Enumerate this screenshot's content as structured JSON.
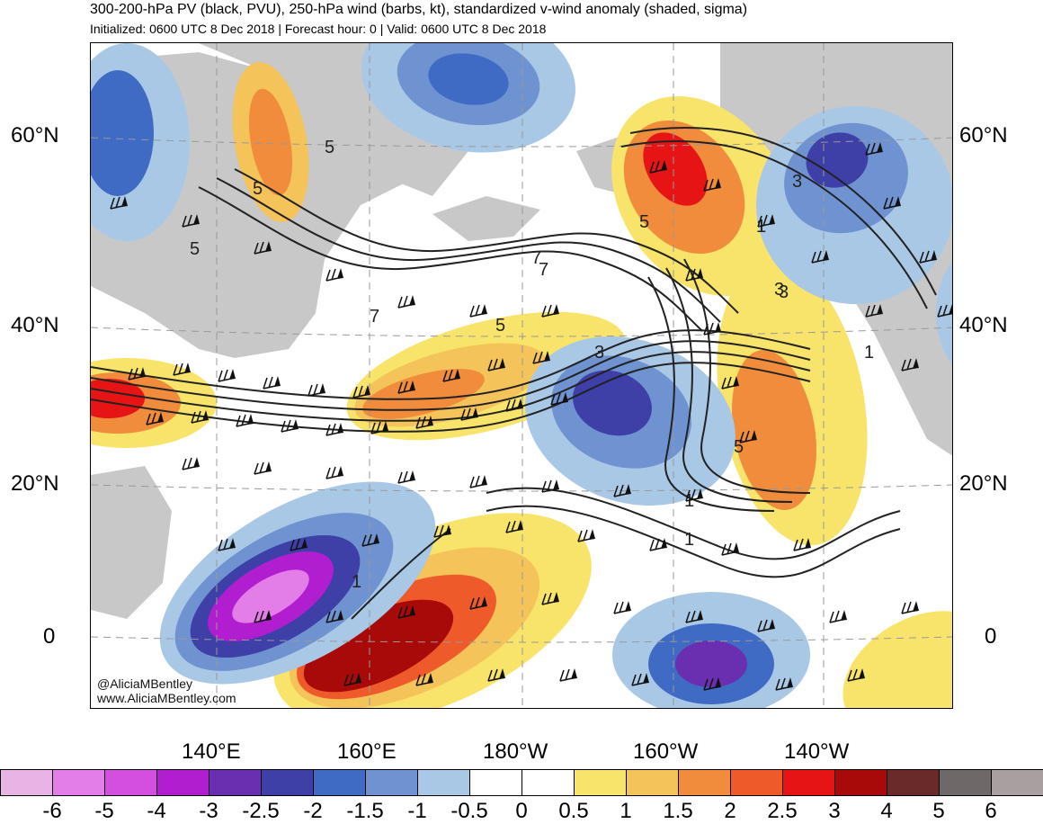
{
  "header": {
    "title": "300-200-hPa PV (black, PVU), 250-hPa wind (barbs, kt), standardized v-wind anomaly (shaded, sigma)",
    "subtitle": "Initialized: 0600 UTC 8 Dec 2018 | Forecast hour: 0 | Valid: 0600 UTC 8 Dec 2018"
  },
  "map": {
    "lat_labels": [
      "60°N",
      "40°N",
      "20°N",
      "0"
    ],
    "lon_labels": [
      "140°E",
      "160°E",
      "180°W",
      "160°W",
      "140°W"
    ],
    "contour_labels": [
      "5",
      "5",
      "5",
      "7",
      "7",
      "7",
      "5",
      "5",
      "3",
      "3",
      "5",
      "3",
      "1",
      "1",
      "1",
      "1",
      "1",
      "1",
      "3"
    ],
    "colors": {
      "land": "#c8c8c8",
      "contour": "#222222"
    }
  },
  "credit": {
    "line1": "@AliciaMBentley",
    "line2": "www.AliciaMBentley.com"
  },
  "colorbar": {
    "ticks": [
      "-6",
      "-5",
      "-4",
      "-3",
      "-2.5",
      "-2",
      "-1.5",
      "-1",
      "-0.5",
      "0",
      "0.5",
      "1",
      "1.5",
      "2",
      "2.5",
      "3",
      "4",
      "5",
      "6"
    ],
    "colors": [
      "#e8b4e6",
      "#e37de8",
      "#d44fe0",
      "#b01ed0",
      "#6a2fb0",
      "#3f3fa8",
      "#3f6bc4",
      "#6f93d0",
      "#a9c8e6",
      "#ffffff",
      "#ffffff",
      "#f8e46a",
      "#f4c35a",
      "#f08c3c",
      "#ef5a2a",
      "#e61414",
      "#a80a0a",
      "#6b2a2a",
      "#6e6868",
      "#a8a0a0"
    ]
  }
}
